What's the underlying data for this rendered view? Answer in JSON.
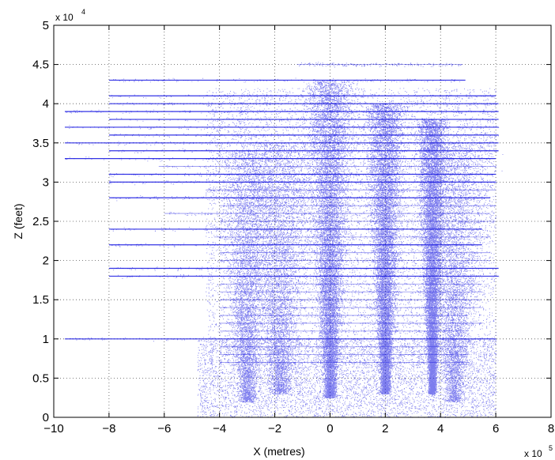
{
  "chart_data": {
    "type": "scatter",
    "xlabel": "X (metres)",
    "ylabel": "Z (feet)",
    "x_multiplier": {
      "base": "x 10",
      "exponent": "5"
    },
    "y_multiplier": {
      "base": "x 10",
      "exponent": "4"
    },
    "xlim": [
      -10,
      8
    ],
    "ylim": [
      0,
      5
    ],
    "x_ticks": [
      -10,
      -8,
      -6,
      -4,
      -2,
      0,
      2,
      4,
      6,
      8
    ],
    "x_tick_labels": [
      "−10",
      "−8",
      "−6",
      "−4",
      "−2",
      "0",
      "2",
      "4",
      "6",
      "8"
    ],
    "y_ticks": [
      0,
      0.5,
      1,
      1.5,
      2,
      2.5,
      3,
      3.5,
      4,
      4.5,
      5
    ],
    "y_tick_labels": [
      "0",
      "0.5",
      "1",
      "1.5",
      "2",
      "2.5",
      "3",
      "3.5",
      "4",
      "4.5",
      "5"
    ],
    "grid": true,
    "marker_color": "#1010e0",
    "flight_levels": [
      {
        "z": 4.5,
        "x": [
          -1.2,
          4.8
        ]
      },
      {
        "z": 4.3,
        "x": [
          -8.0,
          4.9
        ]
      },
      {
        "z": 4.1,
        "x": [
          -8.0,
          6.0
        ]
      },
      {
        "z": 4.0,
        "x": [
          -8.0,
          6.1
        ]
      },
      {
        "z": 3.9,
        "x": [
          -9.6,
          6.1
        ]
      },
      {
        "z": 3.8,
        "x": [
          -8.0,
          6.1
        ]
      },
      {
        "z": 3.7,
        "x": [
          -9.6,
          6.1
        ]
      },
      {
        "z": 3.6,
        "x": [
          -8.0,
          6.1
        ]
      },
      {
        "z": 3.5,
        "x": [
          -9.6,
          6.1
        ]
      },
      {
        "z": 3.4,
        "x": [
          -8.0,
          6.1
        ]
      },
      {
        "z": 3.3,
        "x": [
          -9.6,
          6.0
        ]
      },
      {
        "z": 3.2,
        "x": [
          -6.2,
          6.0
        ]
      },
      {
        "z": 3.1,
        "x": [
          -8.0,
          6.0
        ]
      },
      {
        "z": 3.0,
        "x": [
          -8.0,
          6.0
        ]
      },
      {
        "z": 2.9,
        "x": [
          -4.5,
          6.0
        ]
      },
      {
        "z": 2.8,
        "x": [
          -8.0,
          5.8
        ]
      },
      {
        "z": 2.7,
        "x": [
          -4.0,
          6.0
        ]
      },
      {
        "z": 2.6,
        "x": [
          -6.0,
          5.8
        ]
      },
      {
        "z": 2.5,
        "x": [
          -4.0,
          6.0
        ]
      },
      {
        "z": 2.4,
        "x": [
          -8.0,
          5.5
        ]
      },
      {
        "z": 2.3,
        "x": [
          -4.2,
          5.8
        ]
      },
      {
        "z": 2.2,
        "x": [
          -8.0,
          5.5
        ]
      },
      {
        "z": 2.1,
        "x": [
          -4.0,
          5.8
        ]
      },
      {
        "z": 2.0,
        "x": [
          -4.0,
          5.8
        ]
      },
      {
        "z": 1.9,
        "x": [
          -8.0,
          6.1
        ]
      },
      {
        "z": 1.8,
        "x": [
          -8.0,
          6.1
        ]
      },
      {
        "z": 1.7,
        "x": [
          -4.0,
          5.5
        ]
      },
      {
        "z": 1.6,
        "x": [
          -4.0,
          5.5
        ]
      },
      {
        "z": 1.5,
        "x": [
          -4.0,
          5.5
        ]
      },
      {
        "z": 1.4,
        "x": [
          -4.0,
          5.5
        ]
      },
      {
        "z": 1.3,
        "x": [
          -4.0,
          5.0
        ]
      },
      {
        "z": 1.2,
        "x": [
          -4.0,
          5.5
        ]
      },
      {
        "z": 1.1,
        "x": [
          -4.0,
          5.0
        ]
      },
      {
        "z": 1.0,
        "x": [
          -9.6,
          6.0
        ]
      },
      {
        "z": 0.9,
        "x": [
          -4.0,
          5.0
        ]
      },
      {
        "z": 0.8,
        "x": [
          -4.0,
          5.0
        ]
      },
      {
        "z": 0.7,
        "x": [
          -4.0,
          5.0
        ]
      }
    ],
    "density_clusters": [
      {
        "x": 0.0,
        "z_min": 0.25,
        "z_max": 4.3,
        "spread": 0.55
      },
      {
        "x": 2.0,
        "z_min": 0.3,
        "z_max": 4.0,
        "spread": 0.45
      },
      {
        "x": 3.7,
        "z_min": 0.3,
        "z_max": 3.8,
        "spread": 0.35
      },
      {
        "x": -1.8,
        "z_min": 0.3,
        "z_max": 3.5,
        "spread": 0.9
      },
      {
        "x": 4.5,
        "z_min": 0.2,
        "z_max": 3.5,
        "spread": 0.8
      },
      {
        "x": -3.0,
        "z_min": 0.2,
        "z_max": 3.4,
        "spread": 0.7
      }
    ]
  }
}
